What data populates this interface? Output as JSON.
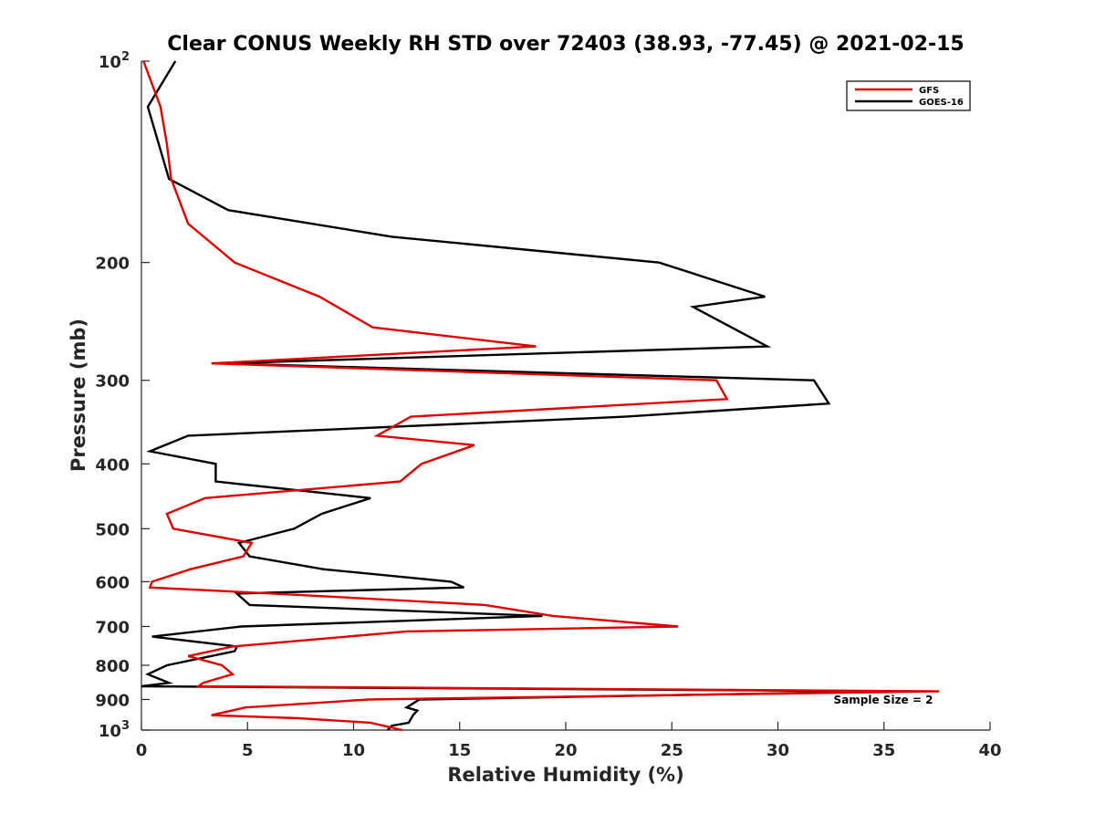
{
  "chart_data": {
    "type": "line",
    "title": "Clear CONUS Weekly RH STD over 72403 (38.93, -77.45) @ 2021-02-15",
    "xlabel": "Relative Humidity (%)",
    "ylabel": "Pressure (mb)",
    "xlim": [
      0,
      40
    ],
    "ylim": [
      100,
      1000
    ],
    "y_scale": "log",
    "y_reversed": true,
    "x_ticks": [
      "0",
      "5",
      "10",
      "15",
      "20",
      "25",
      "30",
      "35",
      "40"
    ],
    "y_ticks": [
      {
        "value": 100,
        "base": "10",
        "exp": "2"
      },
      {
        "value": 200,
        "label": "200"
      },
      {
        "value": 300,
        "label": "300"
      },
      {
        "value": 400,
        "label": "400"
      },
      {
        "value": 500,
        "label": "500"
      },
      {
        "value": 600,
        "label": "600"
      },
      {
        "value": 700,
        "label": "700"
      },
      {
        "value": 800,
        "label": "800"
      },
      {
        "value": 900,
        "label": "900"
      },
      {
        "value": 1000,
        "base": "10",
        "exp": "3"
      }
    ],
    "legend_position": "top-right",
    "annotation": "Sample Size = 2",
    "grid": false,
    "series": [
      {
        "name": "GFS",
        "color": "#e00000",
        "points": [
          [
            0.1,
            100
          ],
          [
            0.9,
            117
          ],
          [
            1.2,
            133
          ],
          [
            1.4,
            150
          ],
          [
            2.2,
            175
          ],
          [
            4.4,
            200
          ],
          [
            8.4,
            225
          ],
          [
            10.9,
            250
          ],
          [
            18.6,
            267
          ],
          [
            3.3,
            283
          ],
          [
            27.1,
            300
          ],
          [
            27.6,
            320
          ],
          [
            12.7,
            340
          ],
          [
            11.1,
            363
          ],
          [
            15.7,
            375
          ],
          [
            13.2,
            400
          ],
          [
            12.2,
            425
          ],
          [
            3.0,
            450
          ],
          [
            1.2,
            475
          ],
          [
            1.5,
            500
          ],
          [
            5.2,
            525
          ],
          [
            4.8,
            550
          ],
          [
            2.3,
            575
          ],
          [
            0.5,
            600
          ],
          [
            0.4,
            612
          ],
          [
            6.2,
            625
          ],
          [
            16.2,
            650
          ],
          [
            19.4,
            675
          ],
          [
            25.3,
            700
          ],
          [
            12.5,
            712
          ],
          [
            4.3,
            750
          ],
          [
            2.2,
            775
          ],
          [
            3.8,
            800
          ],
          [
            4.3,
            825
          ],
          [
            2.9,
            850
          ],
          [
            2.7,
            860
          ],
          [
            37.6,
            875
          ],
          [
            10.7,
            900
          ],
          [
            4.9,
            925
          ],
          [
            3.3,
            950
          ],
          [
            7.4,
            960
          ],
          [
            10.8,
            975
          ],
          [
            12.3,
            1000
          ]
        ]
      },
      {
        "name": "GOES-16",
        "color": "#000000",
        "points": [
          [
            1.6,
            100
          ],
          [
            0.3,
            117
          ],
          [
            1.3,
            150
          ],
          [
            4.1,
            167
          ],
          [
            11.8,
            183
          ],
          [
            24.4,
            200
          ],
          [
            29.4,
            225
          ],
          [
            26.0,
            233
          ],
          [
            29.5,
            267
          ],
          [
            3.8,
            283
          ],
          [
            31.7,
            300
          ],
          [
            32.4,
            325
          ],
          [
            22.8,
            340
          ],
          [
            2.2,
            363
          ],
          [
            0.4,
            383
          ],
          [
            3.5,
            400
          ],
          [
            3.5,
            425
          ],
          [
            10.8,
            450
          ],
          [
            8.5,
            475
          ],
          [
            7.2,
            500
          ],
          [
            4.6,
            525
          ],
          [
            5.1,
            550
          ],
          [
            8.6,
            575
          ],
          [
            14.6,
            600
          ],
          [
            15.2,
            612
          ],
          [
            4.5,
            625
          ],
          [
            5.1,
            650
          ],
          [
            18.9,
            675
          ],
          [
            4.7,
            700
          ],
          [
            0.5,
            725
          ],
          [
            4.5,
            750
          ],
          [
            4.4,
            762
          ],
          [
            1.2,
            800
          ],
          [
            0.3,
            825
          ],
          [
            1.3,
            850
          ],
          [
            0.0,
            860
          ],
          [
            35.5,
            875
          ],
          [
            13.1,
            900
          ],
          [
            12.5,
            925
          ],
          [
            13.0,
            935
          ],
          [
            12.8,
            950
          ],
          [
            12.6,
            975
          ],
          [
            11.8,
            985
          ],
          [
            11.6,
            1000
          ]
        ]
      }
    ]
  }
}
